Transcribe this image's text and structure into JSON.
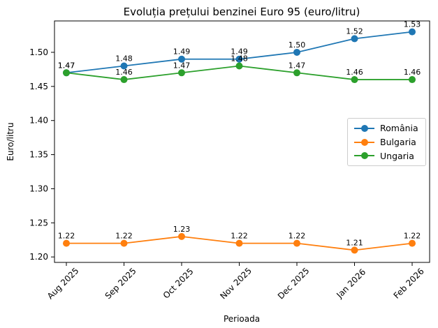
{
  "chart_data": {
    "type": "line",
    "title": "Evoluția prețului benzinei Euro 95 (euro/litru)",
    "xlabel": "Perioada",
    "ylabel": "Euro/litru",
    "categories": [
      "Aug 2025",
      "Sep 2025",
      "Oct 2025",
      "Nov 2025",
      "Dec 2025",
      "Jan 2026",
      "Feb 2026"
    ],
    "series": [
      {
        "name": "România",
        "color": "#1f77b4",
        "values": [
          1.47,
          1.48,
          1.49,
          1.49,
          1.5,
          1.52,
          1.53
        ]
      },
      {
        "name": "Bulgaria",
        "color": "#ff7f0e",
        "values": [
          1.22,
          1.22,
          1.23,
          1.22,
          1.22,
          1.21,
          1.22
        ]
      },
      {
        "name": "Ungaria",
        "color": "#2ca02c",
        "values": [
          1.47,
          1.46,
          1.47,
          1.48,
          1.47,
          1.46,
          1.46
        ]
      }
    ],
    "ytick_labels": [
      "1.20",
      "1.25",
      "1.30",
      "1.35",
      "1.40",
      "1.45",
      "1.50"
    ],
    "ylim": [
      1.192,
      1.546
    ],
    "grid": false,
    "legend_position": "center-right",
    "point_labels": true,
    "marker": "circle",
    "line_width": 1.8,
    "text_color": "#000000",
    "spine_color": "#000000"
  }
}
